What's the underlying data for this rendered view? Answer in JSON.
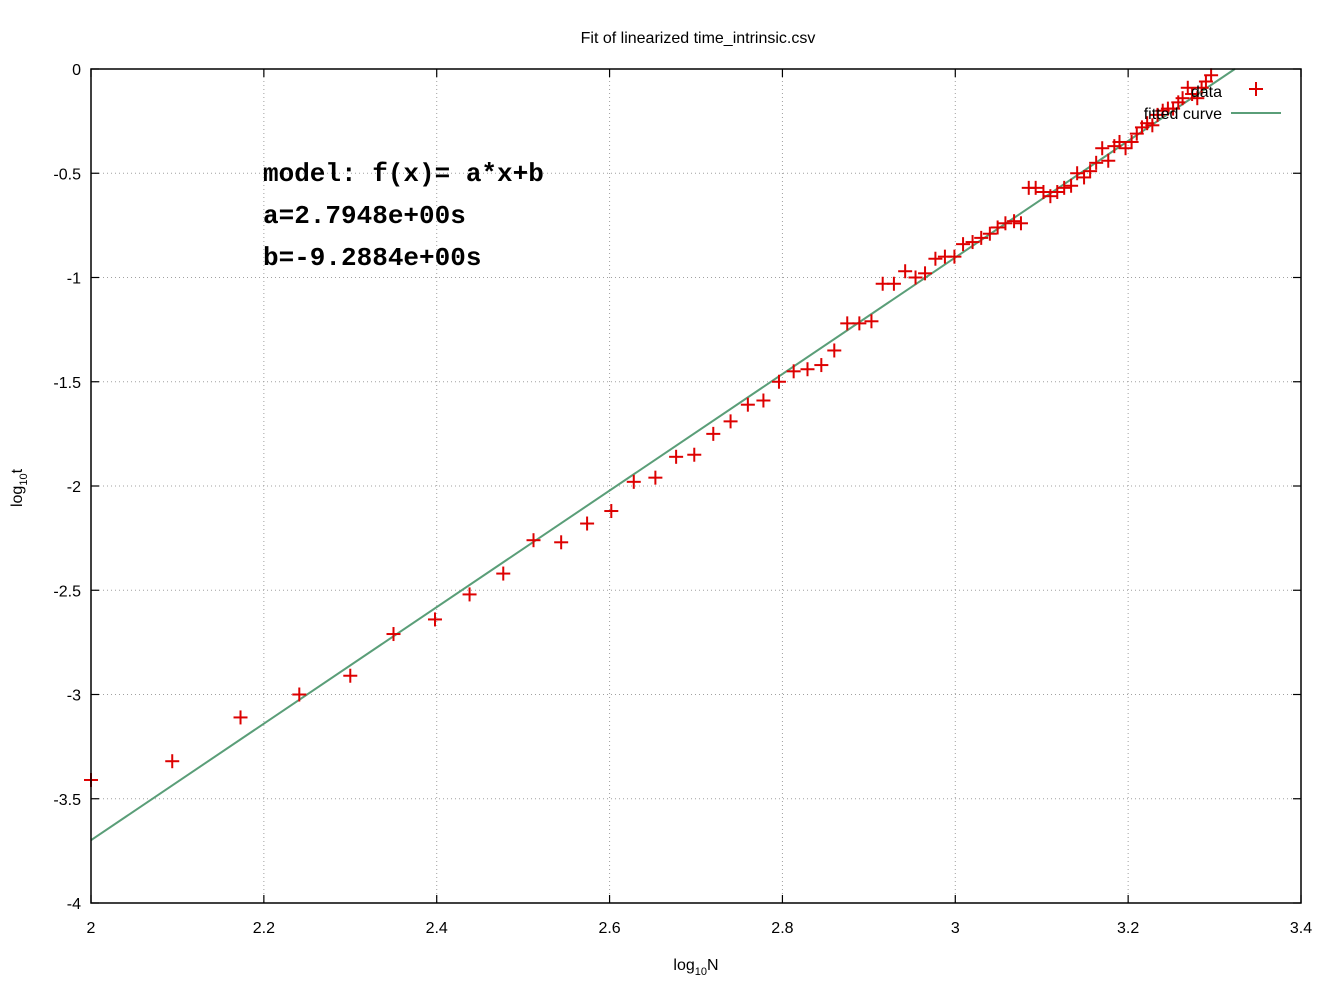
{
  "chart_data": {
    "type": "scatter",
    "title": "Fit of linearized time_intrinsic.csv",
    "xlabel": {
      "base": "log",
      "sub": "10",
      "rest": "N"
    },
    "ylabel": {
      "base": "log",
      "sub": "10",
      "rest": "t"
    },
    "xlim": [
      2,
      3.4
    ],
    "ylim": [
      -4,
      0
    ],
    "xticks": [
      2,
      2.2,
      2.4,
      2.6,
      2.8,
      3,
      3.2,
      3.4
    ],
    "xtick_labels": [
      "2",
      "2.2",
      "2.4",
      "2.6",
      "2.8",
      "3",
      "3.2",
      "3.4"
    ],
    "yticks": [
      0,
      -0.5,
      -1,
      -1.5,
      -2,
      -2.5,
      -3,
      -3.5,
      -4
    ],
    "ytick_labels": [
      "0",
      "-0.5",
      "-1",
      "-1.5",
      "-2",
      "-2.5",
      "-3",
      "-3.5",
      "-4"
    ],
    "grid": true,
    "legend_position": "top-right",
    "annotations": [
      "model: f(x)= a*x+b",
      "a=2.7948e+00s",
      "b=-9.2884e+00s"
    ],
    "series": [
      {
        "name": "data",
        "style": "points",
        "marker": "plus",
        "color": "#dd0000",
        "points": [
          [
            2.0,
            -3.41
          ],
          [
            2.094,
            -3.32
          ],
          [
            2.173,
            -3.11
          ],
          [
            2.241,
            -3.0
          ],
          [
            2.3,
            -2.91
          ],
          [
            2.35,
            -2.71
          ],
          [
            2.398,
            -2.64
          ],
          [
            2.438,
            -2.52
          ],
          [
            2.477,
            -2.42
          ],
          [
            2.512,
            -2.26
          ],
          [
            2.544,
            -2.27
          ],
          [
            2.574,
            -2.18
          ],
          [
            2.602,
            -2.12
          ],
          [
            2.628,
            -1.98
          ],
          [
            2.653,
            -1.96
          ],
          [
            2.677,
            -1.86
          ],
          [
            2.698,
            -1.85
          ],
          [
            2.72,
            -1.75
          ],
          [
            2.74,
            -1.69
          ],
          [
            2.76,
            -1.61
          ],
          [
            2.778,
            -1.59
          ],
          [
            2.796,
            -1.5
          ],
          [
            2.813,
            -1.45
          ],
          [
            2.829,
            -1.44
          ],
          [
            2.845,
            -1.42
          ],
          [
            2.86,
            -1.35
          ],
          [
            2.875,
            -1.22
          ],
          [
            2.889,
            -1.22
          ],
          [
            2.903,
            -1.21
          ],
          [
            2.916,
            -1.03
          ],
          [
            2.929,
            -1.03
          ],
          [
            2.942,
            -0.97
          ],
          [
            2.954,
            -1.0
          ],
          [
            2.965,
            -0.98
          ],
          [
            2.977,
            -0.91
          ],
          [
            2.988,
            -0.9
          ],
          [
            2.999,
            -0.9
          ],
          [
            3.009,
            -0.84
          ],
          [
            3.02,
            -0.83
          ],
          [
            3.03,
            -0.81
          ],
          [
            3.04,
            -0.79
          ],
          [
            3.049,
            -0.76
          ],
          [
            3.058,
            -0.74
          ],
          [
            3.068,
            -0.73
          ],
          [
            3.076,
            -0.74
          ],
          [
            3.085,
            -0.57
          ],
          [
            3.093,
            -0.57
          ],
          [
            3.102,
            -0.59
          ],
          [
            3.11,
            -0.61
          ],
          [
            3.118,
            -0.59
          ],
          [
            3.126,
            -0.57
          ],
          [
            3.134,
            -0.56
          ],
          [
            3.141,
            -0.5
          ],
          [
            3.149,
            -0.52
          ],
          [
            3.156,
            -0.49
          ],
          [
            3.163,
            -0.45
          ],
          [
            3.17,
            -0.38
          ],
          [
            3.177,
            -0.44
          ],
          [
            3.184,
            -0.37
          ],
          [
            3.19,
            -0.35
          ],
          [
            3.197,
            -0.38
          ],
          [
            3.204,
            -0.35
          ],
          [
            3.21,
            -0.31
          ],
          [
            3.216,
            -0.28
          ],
          [
            3.222,
            -0.26
          ],
          [
            3.228,
            -0.27
          ],
          [
            3.234,
            -0.22
          ],
          [
            3.24,
            -0.2
          ],
          [
            3.246,
            -0.19
          ],
          [
            3.252,
            -0.19
          ],
          [
            3.258,
            -0.16
          ],
          [
            3.263,
            -0.14
          ],
          [
            3.269,
            -0.09
          ],
          [
            3.274,
            -0.12
          ],
          [
            3.28,
            -0.14
          ],
          [
            3.285,
            -0.09
          ],
          [
            3.29,
            -0.06
          ],
          [
            3.296,
            -0.03
          ]
        ]
      },
      {
        "name": "fitted curve",
        "style": "line",
        "color": "#5a9e78",
        "slope": 2.7948,
        "intercept": -9.2884
      }
    ]
  }
}
